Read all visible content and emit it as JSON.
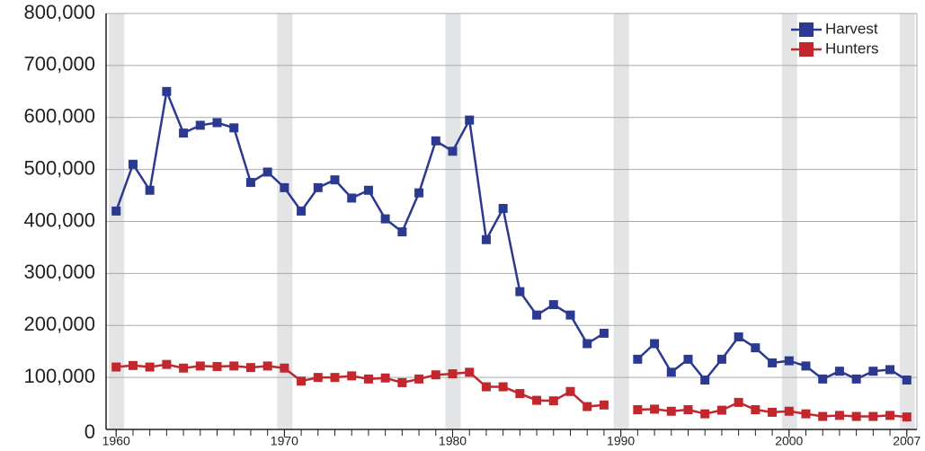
{
  "chart_data": {
    "type": "line",
    "x": [
      1960,
      1961,
      1962,
      1963,
      1964,
      1965,
      1966,
      1967,
      1968,
      1969,
      1970,
      1971,
      1972,
      1973,
      1974,
      1975,
      1976,
      1977,
      1978,
      1979,
      1980,
      1981,
      1982,
      1983,
      1984,
      1985,
      1986,
      1987,
      1988,
      1989,
      1990,
      1991,
      1992,
      1993,
      1994,
      1995,
      1996,
      1997,
      1998,
      1999,
      2000,
      2001,
      2002,
      2003,
      2004,
      2005,
      2006,
      2007
    ],
    "series": [
      {
        "name": "Harvest",
        "color": "#2b3990",
        "values": [
          420000,
          510000,
          460000,
          650000,
          570000,
          585000,
          590000,
          580000,
          475000,
          495000,
          465000,
          420000,
          465000,
          480000,
          445000,
          460000,
          405000,
          380000,
          455000,
          555000,
          535000,
          595000,
          365000,
          425000,
          265000,
          220000,
          240000,
          220000,
          165000,
          185000,
          null,
          135000,
          165000,
          110000,
          135000,
          95000,
          135000,
          178000,
          157000,
          128000,
          132000,
          122000,
          97000,
          112000,
          97000,
          112000,
          115000,
          95000
        ]
      },
      {
        "name": "Hunters",
        "color": "#c1272d",
        "values": [
          120000,
          123000,
          120000,
          125000,
          118000,
          122000,
          121000,
          122000,
          119000,
          122000,
          118000,
          93000,
          100000,
          100000,
          103000,
          97000,
          99000,
          90000,
          97000,
          105000,
          107000,
          110000,
          82000,
          82000,
          69000,
          56000,
          55000,
          73000,
          44000,
          47000,
          null,
          38000,
          39000,
          35000,
          38000,
          30000,
          37000,
          52000,
          38000,
          33000,
          35000,
          30000,
          25000,
          27000,
          25000,
          25000,
          27000,
          24000
        ]
      }
    ],
    "xlim": [
      1959.4,
      2007.6
    ],
    "xticks": [
      1960,
      1970,
      1980,
      1990,
      2000,
      2007
    ],
    "ylim": [
      0,
      800000
    ],
    "yticks": [
      0,
      {
        "value": 100000,
        "label": "100,000"
      },
      {
        "value": 200000,
        "label": "200,000"
      },
      {
        "value": 300000,
        "label": "300,000"
      },
      {
        "value": 400000,
        "label": "400,000"
      },
      {
        "value": 500000,
        "label": "500,000"
      },
      {
        "value": 600000,
        "label": "600,000"
      },
      {
        "value": 700000,
        "label": "700,000"
      },
      {
        "value": 800000,
        "label": "800,000"
      }
    ],
    "grid": true,
    "legend": "upper right"
  }
}
